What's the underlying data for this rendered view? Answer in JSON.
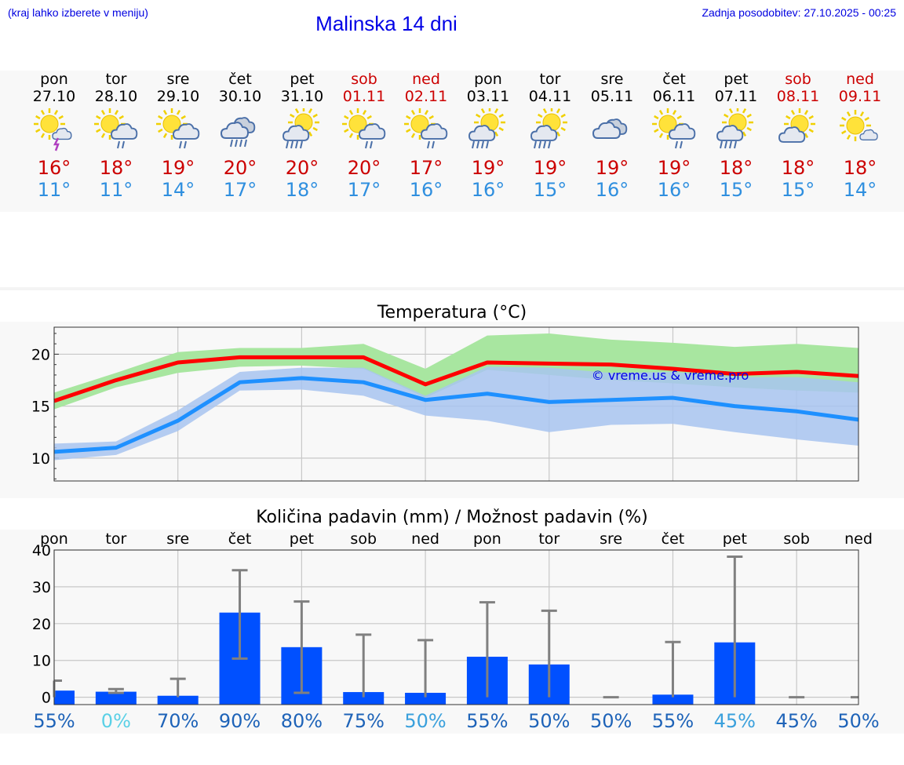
{
  "header": {
    "note": "(kraj lahko izberete v meniju)",
    "title": "Malinska 14 dni",
    "updated": "Zadnja posodobitev: 27.10.2025 - 00:25"
  },
  "colors": {
    "max": "#cc0000",
    "min": "#2f8fdf",
    "bar": "#0050ff",
    "maxLine": "#ff0000",
    "minLine": "#1e90ff",
    "maxBand": "#a8e6a0",
    "minBand": "#a8c4f0",
    "prob_high": "#1e63b8",
    "prob_mid": "#3aa0dc",
    "prob_low": "#5ad0e6"
  },
  "days": [
    {
      "name": "pon",
      "date": "27.10",
      "max": "16°",
      "min": "11°",
      "weekend": false,
      "icon": "sun-cloud-thunder-icon"
    },
    {
      "name": "tor",
      "date": "28.10",
      "max": "18°",
      "min": "11°",
      "weekend": false,
      "icon": "sun-cloud-rain-icon"
    },
    {
      "name": "sre",
      "date": "29.10",
      "max": "19°",
      "min": "14°",
      "weekend": false,
      "icon": "sun-cloud-rain-icon"
    },
    {
      "name": "čet",
      "date": "30.10",
      "max": "20°",
      "min": "17°",
      "weekend": false,
      "icon": "cloud-heavy-rain-icon"
    },
    {
      "name": "pet",
      "date": "31.10",
      "max": "20°",
      "min": "18°",
      "weekend": false,
      "icon": "sun-cloud-heavy-rain-icon"
    },
    {
      "name": "sob",
      "date": "01.11",
      "max": "20°",
      "min": "17°",
      "weekend": true,
      "icon": "sun-cloud-rain-icon"
    },
    {
      "name": "ned",
      "date": "02.11",
      "max": "17°",
      "min": "16°",
      "weekend": true,
      "icon": "sun-cloud-rain-icon"
    },
    {
      "name": "pon",
      "date": "03.11",
      "max": "19°",
      "min": "16°",
      "weekend": false,
      "icon": "sun-cloud-heavy-rain-icon"
    },
    {
      "name": "tor",
      "date": "04.11",
      "max": "19°",
      "min": "15°",
      "weekend": false,
      "icon": "sun-cloud-heavy-rain-icon"
    },
    {
      "name": "sre",
      "date": "05.11",
      "max": "19°",
      "min": "16°",
      "weekend": false,
      "icon": "cloud-icon"
    },
    {
      "name": "čet",
      "date": "06.11",
      "max": "19°",
      "min": "16°",
      "weekend": false,
      "icon": "sun-cloud-rain-icon"
    },
    {
      "name": "pet",
      "date": "07.11",
      "max": "18°",
      "min": "15°",
      "weekend": false,
      "icon": "sun-cloud-heavy-rain-icon"
    },
    {
      "name": "sob",
      "date": "08.11",
      "max": "18°",
      "min": "15°",
      "weekend": true,
      "icon": "sun-cloud-icon"
    },
    {
      "name": "ned",
      "date": "09.11",
      "max": "18°",
      "min": "14°",
      "weekend": true,
      "icon": "sun-small-cloud-icon"
    }
  ],
  "chart_data": [
    {
      "type": "line",
      "title": "Temperatura (°C)",
      "watermark": "© vreme.us & vreme.pro",
      "ylim": [
        7.8,
        22.6
      ],
      "yticks": [
        10,
        15,
        20
      ],
      "grid": true,
      "x": [
        "27.10",
        "28.10",
        "29.10",
        "30.10",
        "31.10",
        "01.11",
        "02.11",
        "03.11",
        "04.11",
        "05.11",
        "06.11",
        "07.11",
        "08.11",
        "09.11"
      ],
      "series": [
        {
          "kind": "max",
          "values": [
            15.5,
            17.5,
            19.2,
            19.7,
            19.7,
            19.7,
            17.1,
            19.2,
            19.1,
            19.0,
            18.6,
            18.1,
            18.3,
            17.9
          ]
        },
        {
          "kind": "min",
          "values": [
            10.6,
            11.0,
            13.6,
            17.3,
            17.7,
            17.3,
            15.6,
            16.2,
            15.4,
            15.6,
            15.8,
            15.0,
            14.5,
            13.7
          ]
        }
      ],
      "bands": [
        {
          "kind": "max",
          "low": [
            14.7,
            16.8,
            18.2,
            18.8,
            18.9,
            18.6,
            15.8,
            18.5,
            18.0,
            17.5,
            17.2,
            16.8,
            16.5,
            16.3
          ],
          "high": [
            16.3,
            18.2,
            20.2,
            20.6,
            20.6,
            21.0,
            18.6,
            21.8,
            22.0,
            21.4,
            21.1,
            20.7,
            21.0,
            20.6
          ]
        },
        {
          "kind": "min",
          "low": [
            9.8,
            10.3,
            12.6,
            16.5,
            16.6,
            16.0,
            14.1,
            13.6,
            12.5,
            13.2,
            13.3,
            12.5,
            11.8,
            11.2
          ],
          "high": [
            11.4,
            11.6,
            14.6,
            18.3,
            18.7,
            18.7,
            16.0,
            18.8,
            18.7,
            18.2,
            18.3,
            17.8,
            17.8,
            17.3
          ]
        }
      ]
    },
    {
      "type": "bar",
      "title": "Količina padavin (mm) / Možnost padavin (%)",
      "categories": [
        "pon",
        "tor",
        "sre",
        "čet",
        "pet",
        "sob",
        "ned",
        "pon",
        "tor",
        "sre",
        "čet",
        "pet",
        "sob",
        "ned"
      ],
      "values": [
        1.8,
        1.5,
        0.4,
        23.0,
        13.6,
        1.4,
        1.2,
        11.0,
        8.9,
        0.0,
        0.7,
        14.9,
        0.0,
        0.0
      ],
      "err_low": [
        0,
        1.2,
        0,
        10.5,
        1.2,
        0,
        0,
        0,
        0,
        0,
        0,
        0,
        0,
        0
      ],
      "err_high": [
        4.5,
        2.2,
        5.0,
        34.5,
        26.0,
        17.0,
        15.5,
        25.8,
        23.5,
        0.0,
        15.0,
        38.2,
        0.0,
        0.0
      ],
      "probability": [
        "55%",
        "0%",
        "70%",
        "90%",
        "80%",
        "75%",
        "50%",
        "55%",
        "50%",
        "50%",
        "55%",
        "45%",
        "45%",
        "50%"
      ],
      "prob_level": [
        "high",
        "low",
        "high",
        "high",
        "high",
        "high",
        "mid",
        "high",
        "high",
        "high",
        "high",
        "mid",
        "high",
        "high"
      ],
      "ylim": [
        -2,
        40
      ],
      "yticks": [
        0,
        10,
        20,
        30,
        40
      ],
      "grid": true
    }
  ]
}
